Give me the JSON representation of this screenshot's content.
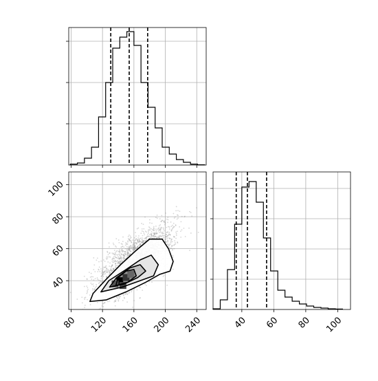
{
  "chart_data": [
    {
      "type": "bar",
      "panel": "histogram-x",
      "xlim": [
        77,
        252
      ],
      "ylim": [
        0,
        1.0
      ],
      "grid": true,
      "bin_edges": [
        79,
        88,
        97,
        106,
        115,
        124,
        133,
        142,
        151,
        160,
        169,
        178,
        187,
        196,
        205,
        214,
        223,
        232,
        241,
        250
      ],
      "values": [
        0.007,
        0.015,
        0.05,
        0.13,
        0.35,
        0.6,
        0.85,
        0.93,
        0.97,
        0.87,
        0.6,
        0.42,
        0.27,
        0.13,
        0.08,
        0.04,
        0.02,
        0.007,
        0.002
      ],
      "quantiles": [
        130.5,
        154,
        177.5
      ],
      "yticks": [
        0.3,
        0.6,
        0.9
      ]
    },
    {
      "type": "scatter",
      "panel": "joint-x-y",
      "xlim": [
        77,
        252
      ],
      "ylim": [
        22,
        108
      ],
      "grid": true,
      "xticks": [
        80,
        120,
        160,
        200,
        240
      ],
      "yticks": [
        40,
        60,
        80,
        100
      ],
      "xtick_labels": [
        "80",
        "120",
        "160",
        "200",
        "240"
      ],
      "ytick_labels": [
        "40",
        "60",
        "80",
        "100"
      ],
      "density_center": [
        148,
        40
      ],
      "contours": [
        [
          [
            104,
            27
          ],
          [
            125,
            28
          ],
          [
            150,
            33
          ],
          [
            175,
            39
          ],
          [
            193,
            44
          ],
          [
            206,
            46
          ],
          [
            210,
            52
          ],
          [
            204,
            60
          ],
          [
            196,
            66
          ],
          [
            180,
            66
          ],
          [
            163,
            59
          ],
          [
            143,
            50
          ],
          [
            125,
            41
          ],
          [
            108,
            32
          ],
          [
            104,
            27
          ]
        ],
        [
          [
            118,
            33
          ],
          [
            145,
            36
          ],
          [
            168,
            40
          ],
          [
            185,
            43
          ],
          [
            191,
            50
          ],
          [
            182,
            56
          ],
          [
            168,
            53
          ],
          [
            150,
            47
          ],
          [
            128,
            40
          ],
          [
            118,
            33
          ]
        ],
        [
          [
            129,
            36
          ],
          [
            148,
            38
          ],
          [
            165,
            42
          ],
          [
            175,
            46
          ],
          [
            168,
            50
          ],
          [
            155,
            48
          ],
          [
            138,
            42
          ],
          [
            129,
            36
          ]
        ],
        [
          [
            137,
            37
          ],
          [
            152,
            39
          ],
          [
            163,
            43
          ],
          [
            160,
            47
          ],
          [
            150,
            46
          ],
          [
            140,
            42
          ],
          [
            137,
            37
          ]
        ]
      ]
    },
    {
      "type": "bar",
      "panel": "histogram-y",
      "xlim": [
        22,
        108
      ],
      "ylim": [
        0,
        1.0
      ],
      "grid": true,
      "bin_edges": [
        22,
        26.5,
        31,
        35.5,
        40,
        44.5,
        49,
        53.5,
        58,
        62.5,
        67,
        71.5,
        76,
        80.5,
        85,
        89.5,
        94,
        98.5,
        103
      ],
      "values": [
        0.005,
        0.07,
        0.29,
        0.62,
        0.89,
        0.93,
        0.78,
        0.52,
        0.28,
        0.14,
        0.09,
        0.06,
        0.04,
        0.025,
        0.015,
        0.01,
        0.005,
        0.003
      ],
      "quantiles": [
        36.5,
        43.5,
        55.5
      ],
      "xticks": [
        40,
        60,
        80,
        100
      ],
      "xtick_labels": [
        "40",
        "60",
        "80",
        "100"
      ],
      "yticks": [
        0.22,
        0.44,
        0.66,
        0.88
      ]
    }
  ]
}
